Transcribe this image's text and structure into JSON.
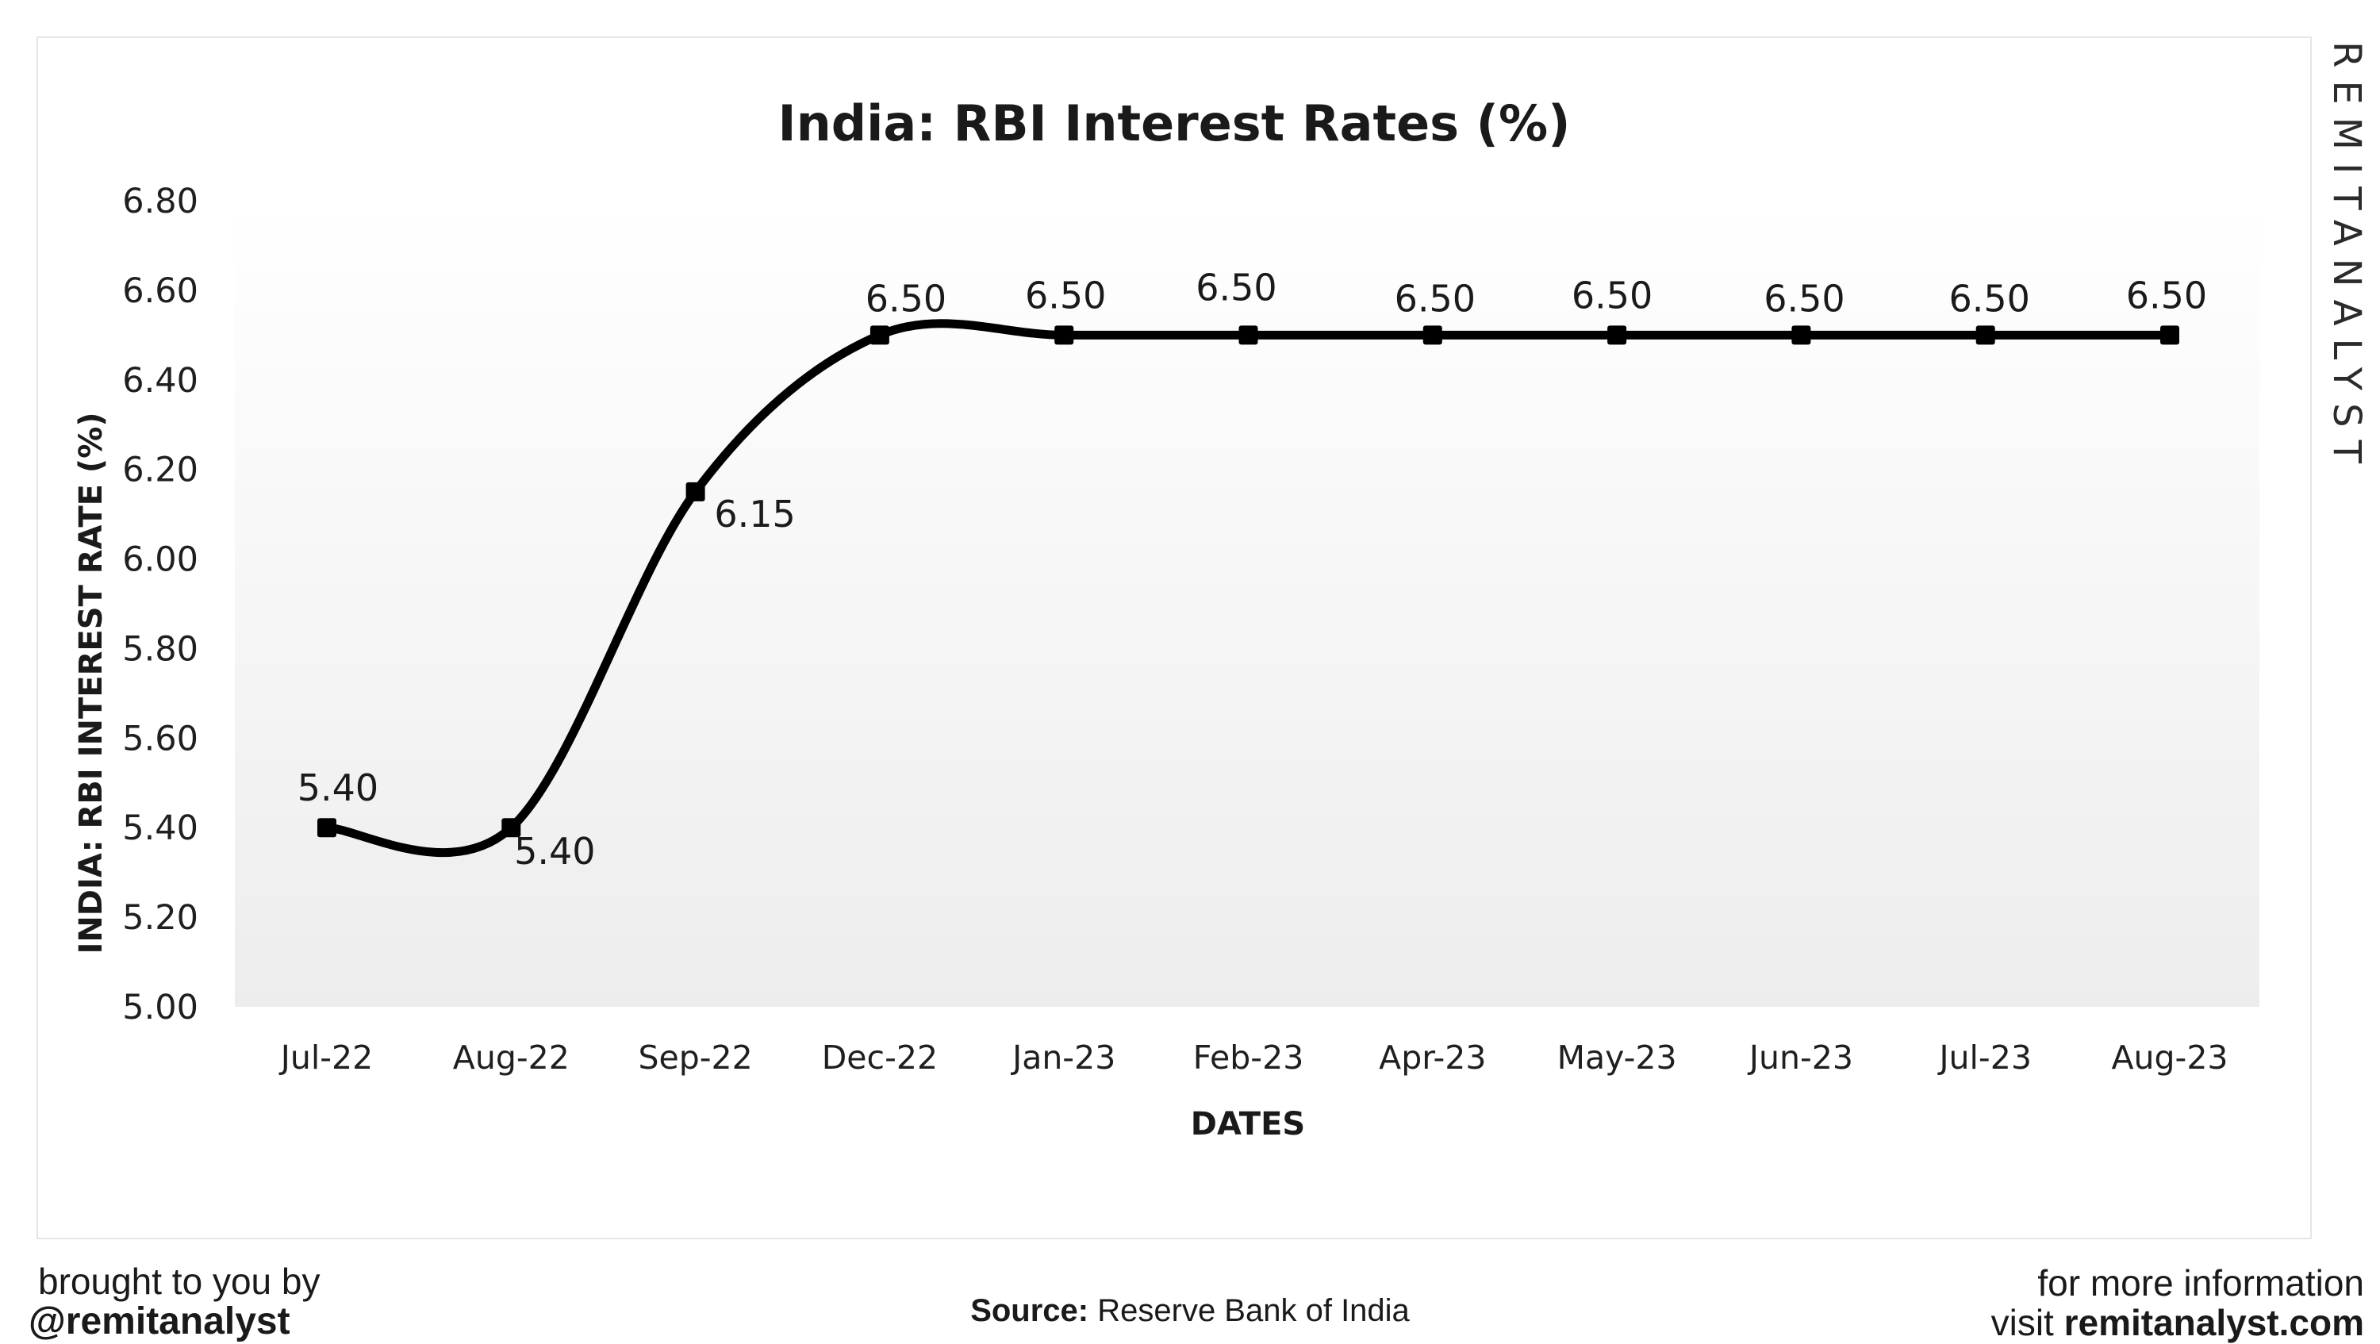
{
  "chart_data": {
    "type": "line",
    "title": "India: RBI Interest Rates (%)",
    "xlabel": "DATES",
    "ylabel": "INDIA: RBI INTEREST RATE (%)",
    "categories": [
      "Jul-22",
      "Aug-22",
      "Sep-22",
      "Dec-22",
      "Jan-23",
      "Feb-23",
      "Apr-23",
      "May-23",
      "Jun-23",
      "Jul-23",
      "Aug-23"
    ],
    "series": [
      {
        "values": [
          5.4,
          5.4,
          6.15,
          6.5,
          6.5,
          6.5,
          6.5,
          6.5,
          6.5,
          6.5,
          6.5
        ],
        "labels": [
          "5.40",
          "5.40",
          "6.15",
          "6.50",
          "6.50",
          "6.50",
          "6.50",
          "6.50",
          "6.50",
          "6.50",
          "6.50"
        ]
      }
    ],
    "yticks": [
      "5.00",
      "5.20",
      "5.40",
      "5.60",
      "5.80",
      "6.00",
      "6.20",
      "6.40",
      "6.60",
      "6.80"
    ],
    "ylim": [
      5.0,
      6.8
    ],
    "grid": false,
    "smooth": true,
    "line_color": "#000000",
    "plot_background": "#f2f2f2"
  },
  "watermark": "REMITANALYST",
  "footer": {
    "left_line1": "brought to you by",
    "left_line2": "@remitanalyst",
    "source_key": "Source:",
    "source_value": "Reserve Bank of India",
    "right_line1": "for more information",
    "right_line2_prefix": "visit",
    "right_line2_site": "remitanalyst.com"
  }
}
